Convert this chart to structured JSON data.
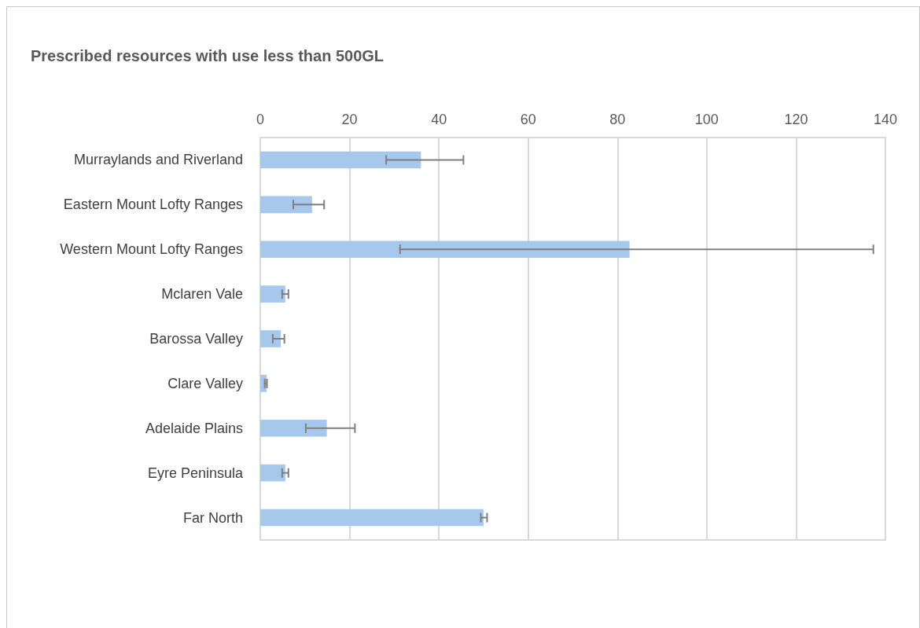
{
  "chart_data": {
    "type": "bar",
    "orientation": "horizontal",
    "title": "Prescribed resources with use less than 500GL",
    "categories": [
      "Murraylands and Riverland",
      "Eastern Mount Lofty Ranges",
      "Western Mount Lofty Ranges",
      "Mclaren Vale",
      "Barossa Valley",
      "Clare Valley",
      "Adelaide Plains",
      "Eyre Peninsula",
      "Far North"
    ],
    "values": [
      36.0,
      11.6,
      82.7,
      5.6,
      4.6,
      1.4,
      14.9,
      5.6,
      50.0
    ],
    "errors": [
      [
        28.2,
        45.5
      ],
      [
        7.4,
        14.3
      ],
      [
        31.3,
        137.3
      ],
      [
        4.9,
        6.3
      ],
      [
        2.8,
        5.4
      ],
      [
        1.0,
        1.5
      ],
      [
        10.2,
        21.2
      ],
      [
        4.9,
        6.3
      ],
      [
        49.4,
        50.8
      ]
    ],
    "color": "#a6c8ec",
    "xlim": [
      0,
      140
    ],
    "xticks": [
      0,
      20,
      40,
      60,
      80,
      100,
      120,
      140
    ],
    "grid": "x"
  }
}
